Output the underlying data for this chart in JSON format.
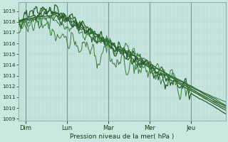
{
  "bg_color": "#c8e8e0",
  "grid_color_v": "#b0ccc8",
  "grid_color_h": "#b8d8d0",
  "line_color_dark": "#2a5c2a",
  "line_color_mid": "#3a7a3a",
  "xlabel": "Pression niveau de la mer( hPa )",
  "xlim": [
    0,
    120
  ],
  "ylim": [
    1008.8,
    1019.8
  ],
  "yticks": [
    1009,
    1010,
    1011,
    1012,
    1013,
    1014,
    1015,
    1016,
    1017,
    1018,
    1019
  ],
  "xtick_labels": [
    "Dim",
    "Lun",
    "Mar",
    "Mer",
    "Jeu"
  ],
  "xtick_positions": [
    4,
    28,
    52,
    76,
    100
  ],
  "vline_positions": [
    4,
    28,
    52,
    76,
    100
  ]
}
